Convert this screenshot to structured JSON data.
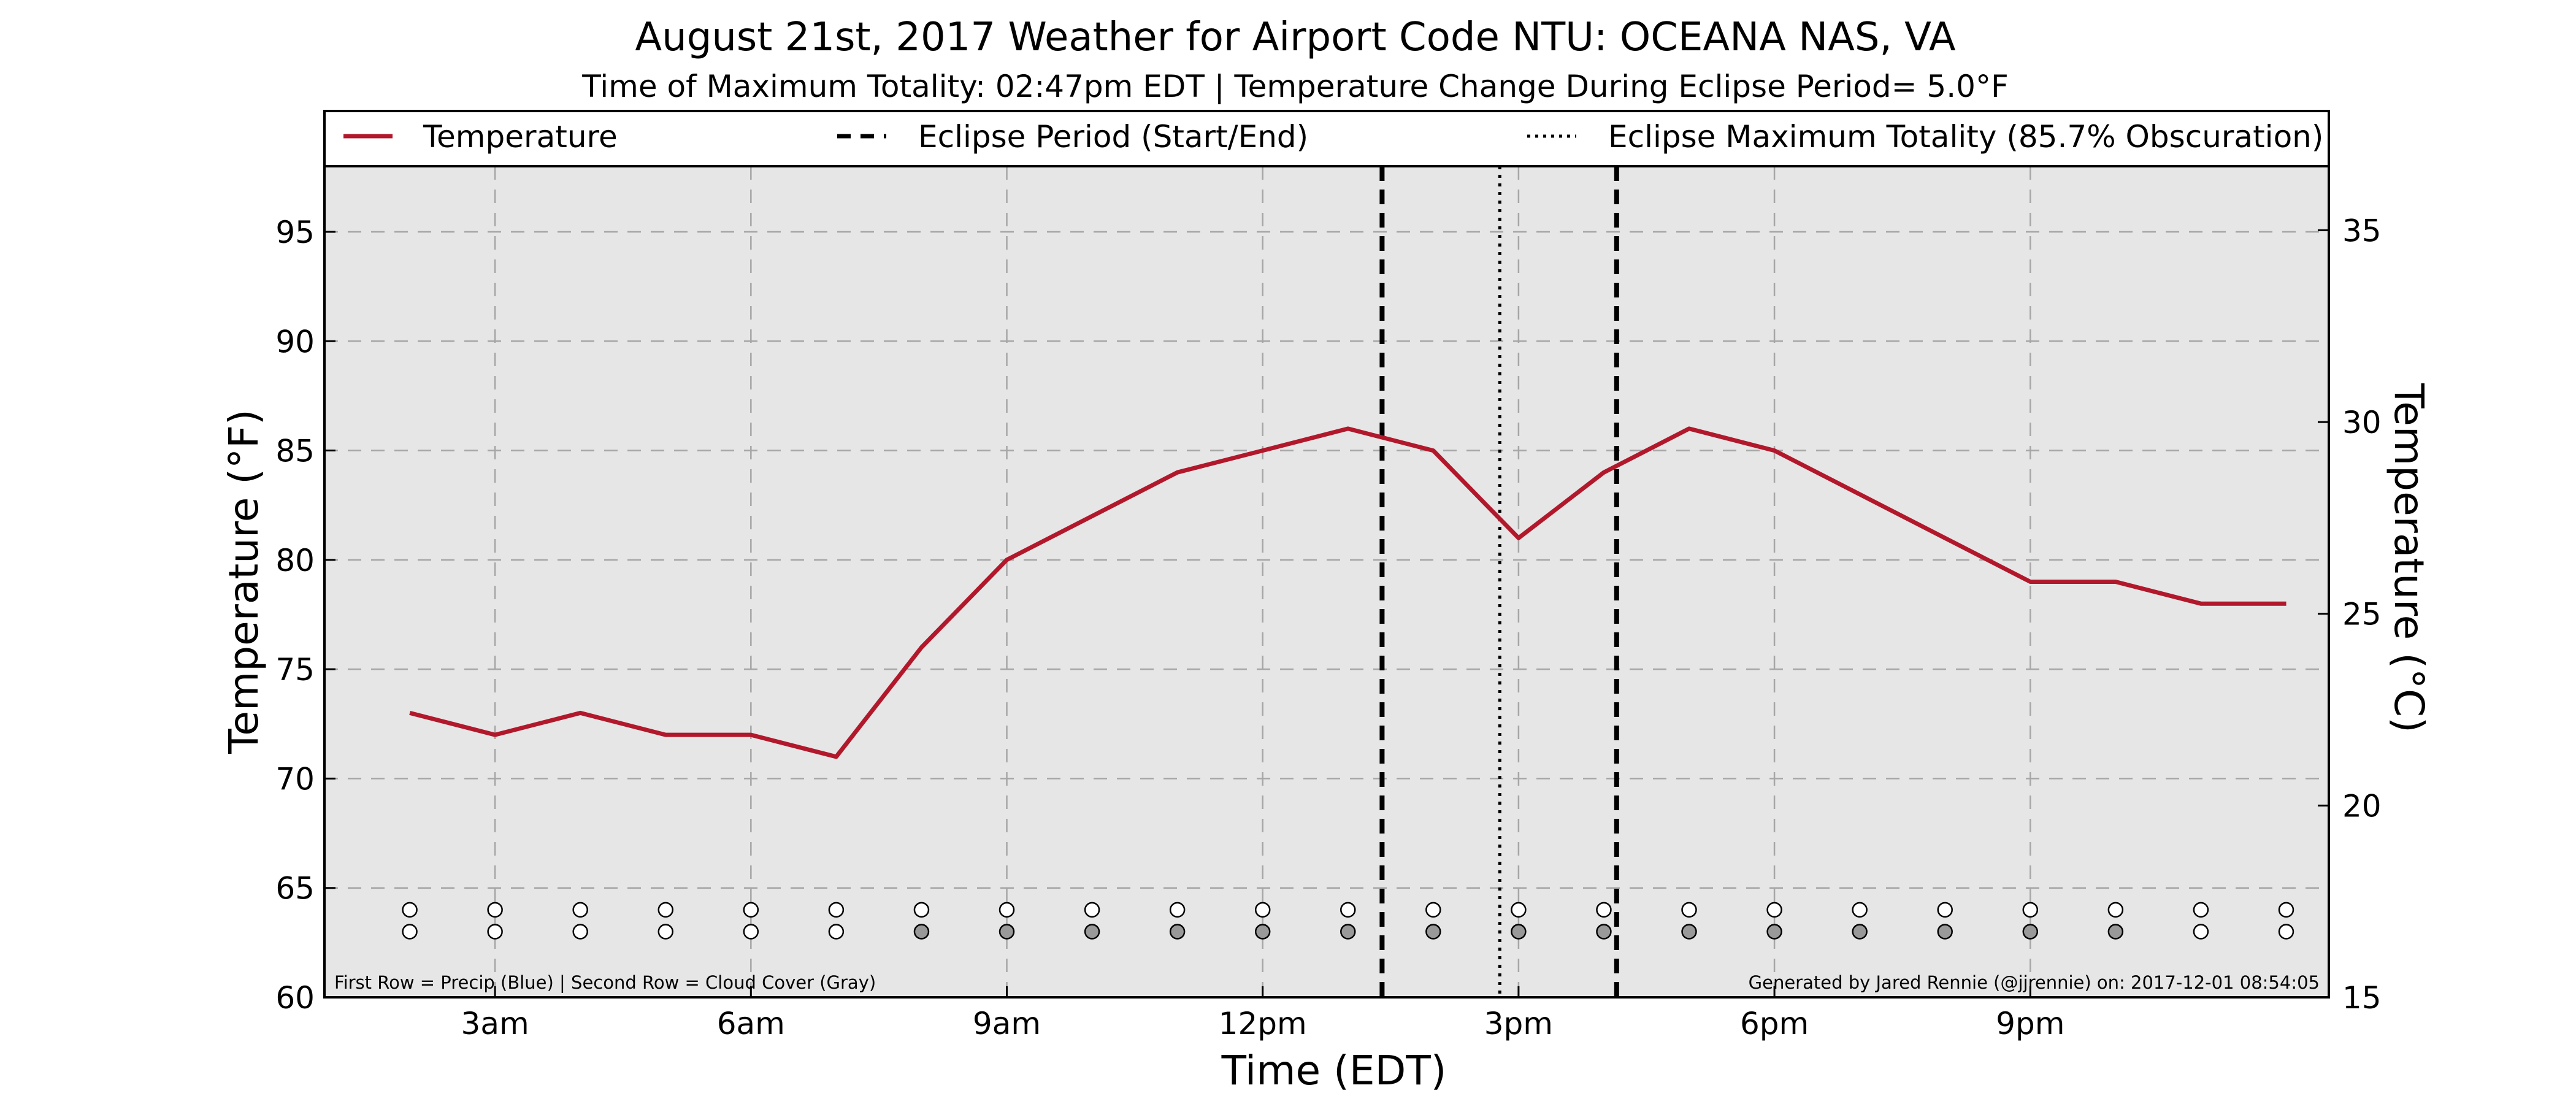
{
  "chart_data": {
    "type": "line",
    "title": "August 21st, 2017 Weather for Airport Code NTU: OCEANA NAS, VA",
    "subtitle": "Time of Maximum Totality: 02:47pm EDT | Temperature Change During Eclipse Period= 5.0°F",
    "xlabel": "Time (EDT)",
    "ylabel": "Temperature (°F)",
    "y2label": "Temperature (°C)",
    "xlim": [
      1.0,
      24.5
    ],
    "ylim": [
      60,
      98
    ],
    "y2lim": [
      15,
      36.67
    ],
    "x_ticks": [
      {
        "x": 3,
        "label": "3am"
      },
      {
        "x": 6,
        "label": "6am"
      },
      {
        "x": 9,
        "label": "9am"
      },
      {
        "x": 12,
        "label": "12pm"
      },
      {
        "x": 15,
        "label": "3pm"
      },
      {
        "x": 18,
        "label": "6pm"
      },
      {
        "x": 21,
        "label": "9pm"
      }
    ],
    "y_ticks": [
      60,
      65,
      70,
      75,
      80,
      85,
      90,
      95
    ],
    "y2_ticks": [
      15,
      20,
      25,
      30,
      35
    ],
    "grid": true,
    "series": [
      {
        "name": "Temperature",
        "color": "#b2182b",
        "x": [
          2,
          3,
          4,
          5,
          6,
          7,
          8,
          9,
          10,
          11,
          12,
          13,
          14,
          15,
          16,
          17,
          18,
          19,
          20,
          21,
          22,
          23,
          24
        ],
        "values": [
          73,
          72,
          73,
          72,
          72,
          71,
          76,
          80,
          82,
          84,
          85,
          86,
          85,
          81,
          84,
          86,
          85,
          83,
          81,
          79,
          79,
          78,
          78
        ]
      }
    ],
    "eclipse_start": 13.4,
    "eclipse_end": 16.15,
    "eclipse_max": 14.78,
    "legend": {
      "placement": "top",
      "entries": [
        {
          "label": "Temperature",
          "style": "solid",
          "color": "#b2182b"
        },
        {
          "label": "Eclipse Period (Start/End)",
          "style": "dashed",
          "color": "#000000"
        },
        {
          "label": "Eclipse Maximum Totality (85.7% Obscuration)",
          "style": "dotted",
          "color": "#000000"
        }
      ]
    },
    "condition_rows": {
      "hours": [
        2,
        3,
        4,
        5,
        6,
        7,
        8,
        9,
        10,
        11,
        12,
        13,
        14,
        15,
        16,
        17,
        18,
        19,
        20,
        21,
        22,
        23,
        24
      ],
      "precip_color": "#ffffff",
      "cloud_colors": [
        "#ffffff",
        "#ffffff",
        "#ffffff",
        "#ffffff",
        "#ffffff",
        "#ffffff",
        "#999999",
        "#999999",
        "#999999",
        "#999999",
        "#999999",
        "#999999",
        "#999999",
        "#999999",
        "#999999",
        "#999999",
        "#999999",
        "#999999",
        "#999999",
        "#999999",
        "#999999",
        "#ffffff",
        "#ffffff"
      ]
    },
    "footnote_left": "First Row = Precip (Blue) | Second Row = Cloud Cover (Gray)",
    "footnote_right": "Generated by Jared Rennie (@jjrennie) on: 2017-12-01 08:54:05"
  }
}
